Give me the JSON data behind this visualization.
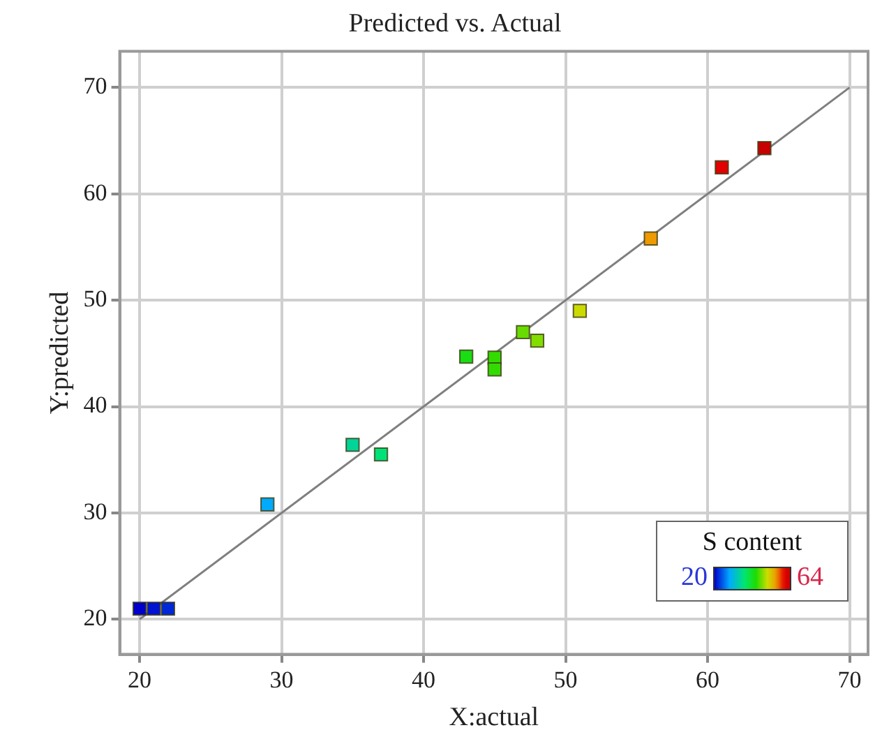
{
  "chart_data": {
    "type": "scatter",
    "title": "Predicted vs. Actual",
    "xlabel": "X:actual",
    "ylabel": "Y:predicted",
    "legend_title": "S content",
    "annotations": [
      "20",
      "64"
    ],
    "xlim": [
      18.6,
      71.3
    ],
    "ylim": [
      16.7,
      73.4
    ],
    "xticks": [
      20,
      30,
      40,
      50,
      60,
      70
    ],
    "yticks": [
      20,
      30,
      40,
      50,
      60,
      70
    ],
    "grid": true,
    "marker": "square",
    "series": [
      {
        "x": [
          20,
          21,
          22,
          29,
          35,
          37,
          43,
          45,
          45,
          47,
          48,
          51,
          56,
          61,
          64
        ],
        "values": [
          21,
          21,
          21,
          30.8,
          36.4,
          35.5,
          44.7,
          44.6,
          43.5,
          47.0,
          46.2,
          49.0,
          55.8,
          62.5,
          64.3
        ],
        "colors": [
          "#0000cc",
          "#0013d2",
          "#0027d8",
          "#00abfc",
          "#00d499",
          "#00e278",
          "#19de14",
          "#33dc00",
          "#33dc00",
          "#68dc00",
          "#82dd00",
          "#cdda00",
          "#ee9a00",
          "#e20000",
          "#c80000"
        ]
      },
      {
        "type": "line",
        "x": [
          20,
          70
        ],
        "values": [
          20,
          70
        ],
        "color": "#7f7f7f",
        "marker": "none"
      }
    ]
  }
}
